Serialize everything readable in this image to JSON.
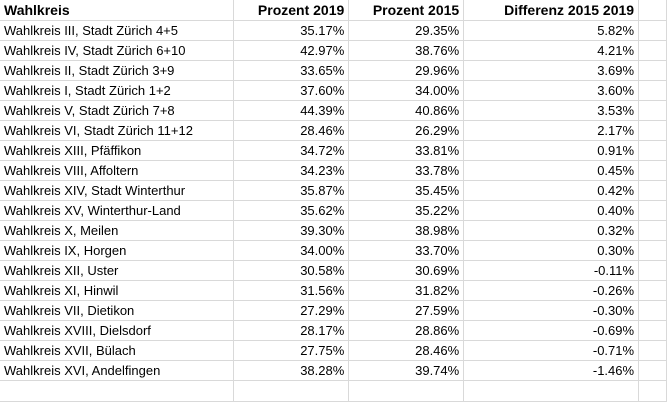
{
  "headers": [
    "Wahlkreis",
    "Prozent 2019",
    "Prozent 2015",
    "Differenz 2015 2019"
  ],
  "rows": [
    {
      "name": "Wahlkreis III, Stadt Zürich 4+5",
      "p2019": "35.17%",
      "p2015": "29.35%",
      "diff": "5.82%"
    },
    {
      "name": "Wahlkreis IV, Stadt Zürich 6+10",
      "p2019": "42.97%",
      "p2015": "38.76%",
      "diff": "4.21%"
    },
    {
      "name": "Wahlkreis II, Stadt Zürich 3+9",
      "p2019": "33.65%",
      "p2015": "29.96%",
      "diff": "3.69%"
    },
    {
      "name": "Wahlkreis I, Stadt Zürich 1+2",
      "p2019": "37.60%",
      "p2015": "34.00%",
      "diff": "3.60%"
    },
    {
      "name": "Wahlkreis V, Stadt Zürich 7+8",
      "p2019": "44.39%",
      "p2015": "40.86%",
      "diff": "3.53%"
    },
    {
      "name": "Wahlkreis VI, Stadt Zürich 11+12",
      "p2019": "28.46%",
      "p2015": "26.29%",
      "diff": "2.17%"
    },
    {
      "name": "Wahlkreis XIII, Pfäffikon",
      "p2019": "34.72%",
      "p2015": "33.81%",
      "diff": "0.91%"
    },
    {
      "name": "Wahlkreis VIII, Affoltern",
      "p2019": "34.23%",
      "p2015": "33.78%",
      "diff": "0.45%"
    },
    {
      "name": "Wahlkreis XIV, Stadt Winterthur",
      "p2019": "35.87%",
      "p2015": "35.45%",
      "diff": "0.42%"
    },
    {
      "name": "Wahlkreis XV, Winterthur-Land",
      "p2019": "35.62%",
      "p2015": "35.22%",
      "diff": "0.40%"
    },
    {
      "name": "Wahlkreis X, Meilen",
      "p2019": "39.30%",
      "p2015": "38.98%",
      "diff": "0.32%"
    },
    {
      "name": "Wahlkreis IX, Horgen",
      "p2019": "34.00%",
      "p2015": "33.70%",
      "diff": "0.30%"
    },
    {
      "name": "Wahlkreis XII, Uster",
      "p2019": "30.58%",
      "p2015": "30.69%",
      "diff": "-0.11%"
    },
    {
      "name": "Wahlkreis XI, Hinwil",
      "p2019": "31.56%",
      "p2015": "31.82%",
      "diff": "-0.26%"
    },
    {
      "name": "Wahlkreis VII, Dietikon",
      "p2019": "27.29%",
      "p2015": "27.59%",
      "diff": "-0.30%"
    },
    {
      "name": "Wahlkreis XVIII, Dielsdorf",
      "p2019": "28.17%",
      "p2015": "28.86%",
      "diff": "-0.69%"
    },
    {
      "name": "Wahlkreis XVII, Bülach",
      "p2019": "27.75%",
      "p2015": "28.46%",
      "diff": "-0.71%"
    },
    {
      "name": "Wahlkreis XVI, Andelfingen",
      "p2019": "38.28%",
      "p2015": "39.74%",
      "diff": "-1.46%"
    }
  ]
}
